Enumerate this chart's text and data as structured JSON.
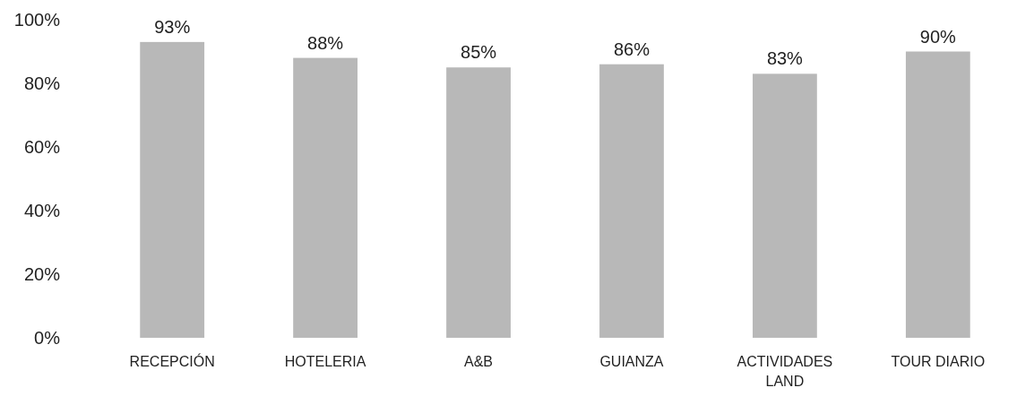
{
  "chart_data": {
    "type": "bar",
    "categories": [
      "RECEPCIÓN",
      "HOTELERIA",
      "A&B",
      "GUIANZA",
      "ACTIVIDADES LAND",
      "TOUR DIARIO"
    ],
    "values": [
      93,
      88,
      85,
      86,
      83,
      90
    ],
    "value_labels": [
      "93%",
      "88%",
      "85%",
      "86%",
      "83%",
      "90%"
    ],
    "color": "#b8b8b8",
    "ylim": [
      0,
      100
    ],
    "yticks": [
      {
        "value": 0,
        "label": "0%"
      },
      {
        "value": 20,
        "label": "20%"
      },
      {
        "value": 40,
        "label": "40%"
      },
      {
        "value": 60,
        "label": "60%"
      },
      {
        "value": 80,
        "label": "80%"
      },
      {
        "value": 100,
        "label": "100%"
      }
    ],
    "grid": false
  }
}
